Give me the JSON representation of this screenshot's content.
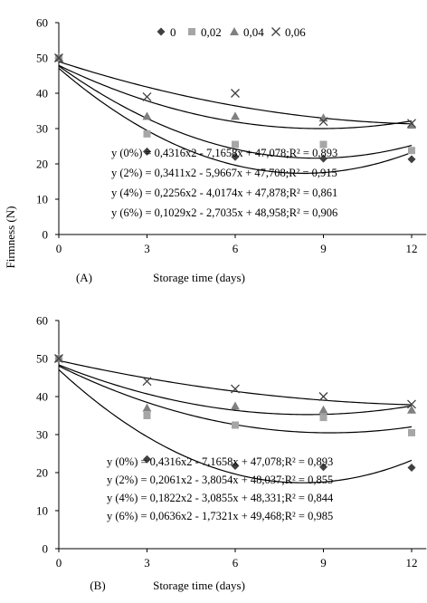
{
  "shared": {
    "ylabel": "Firmness (N)",
    "xlabel": "Storage time (days)",
    "legend": [
      "0",
      "0,02",
      "0,04",
      "0,06"
    ]
  },
  "chart_data": [
    {
      "panel_label": "(A)",
      "type": "scatter",
      "x": [
        0,
        3,
        6,
        9,
        12
      ],
      "xticks": [
        0,
        3,
        6,
        9,
        12
      ],
      "xlim": [
        0,
        12.5
      ],
      "ylim": [
        0,
        60
      ],
      "yticks": [
        0,
        10,
        20,
        30,
        40,
        50,
        60
      ],
      "grid": false,
      "legend_placement": "top-right",
      "xlabel": "Storage time (days)",
      "ylabel": "Firmness (N)",
      "series": [
        {
          "name": "0",
          "marker": "diamond",
          "color": "#404040",
          "values": [
            50.0,
            23.5,
            22.0,
            21.5,
            21.3
          ]
        },
        {
          "name": "0,02",
          "marker": "square",
          "color": "#a6a6a6",
          "values": [
            50.0,
            28.5,
            25.5,
            25.5,
            23.8
          ]
        },
        {
          "name": "0,04",
          "marker": "triangle",
          "color": "#808080",
          "values": [
            50.0,
            33.5,
            33.5,
            33.0,
            31.0
          ]
        },
        {
          "name": "0,06",
          "marker": "x",
          "color": "#404040",
          "values": [
            50.0,
            39.0,
            40.0,
            32.0,
            31.5
          ]
        }
      ],
      "fits": [
        {
          "a": 0.4316,
          "b": -7.1658,
          "c": 47.078
        },
        {
          "a": 0.3411,
          "b": -5.9667,
          "c": 47.708
        },
        {
          "a": 0.2256,
          "b": -4.0174,
          "c": 47.878
        },
        {
          "a": 0.1029,
          "b": -2.7035,
          "c": 48.958
        }
      ],
      "equations": [
        "y (0%) = 0,4316x2 - 7,1658x + 47,078;R² = 0,893",
        "y (2%) = 0,3411x2 - 5,9667x + 47,708;R² = 0,915",
        "y (4%) = 0,2256x2 - 4,0174x + 47,878;R² = 0,861",
        "y (6%) = 0,1029x2 - 2,7035x + 48,958;R² = 0,906"
      ]
    },
    {
      "panel_label": "(B)",
      "type": "scatter",
      "x": [
        0,
        3,
        6,
        9,
        12
      ],
      "xticks": [
        0,
        3,
        6,
        9,
        12
      ],
      "xlim": [
        0,
        12.5
      ],
      "ylim": [
        0,
        60
      ],
      "yticks": [
        0,
        10,
        20,
        30,
        40,
        50,
        60
      ],
      "grid": false,
      "xlabel": "Storage time (days)",
      "series": [
        {
          "name": "0",
          "marker": "diamond",
          "color": "#404040",
          "values": [
            50.0,
            23.5,
            21.8,
            21.5,
            21.3
          ]
        },
        {
          "name": "0,02",
          "marker": "square",
          "color": "#a6a6a6",
          "values": [
            50.0,
            35.0,
            32.5,
            34.5,
            30.5
          ]
        },
        {
          "name": "0,04",
          "marker": "triangle",
          "color": "#808080",
          "values": [
            50.0,
            37.0,
            37.5,
            36.5,
            36.5
          ]
        },
        {
          "name": "0,06",
          "marker": "x",
          "color": "#404040",
          "values": [
            50.0,
            44.0,
            42.0,
            40.0,
            38.0
          ]
        }
      ],
      "fits": [
        {
          "a": 0.4316,
          "b": -7.1658,
          "c": 47.078
        },
        {
          "a": 0.2061,
          "b": -3.8054,
          "c": 48.037
        },
        {
          "a": 0.1822,
          "b": -3.0855,
          "c": 48.331
        },
        {
          "a": 0.0636,
          "b": -1.7321,
          "c": 49.468
        }
      ],
      "equations": [
        "y (0%) = 0,4316x2 - 7,1658x + 47,078;R² = 0,893",
        "y (2%) = 0,2061x2 - 3,8054x + 48,037;R² = 0,855",
        "y (4%) = 0,1822x2 - 3,0855x + 48,331;R² = 0,844",
        "y (6%) = 0,0636x2 - 1,7321x + 49,468;R² = 0,985"
      ]
    }
  ]
}
